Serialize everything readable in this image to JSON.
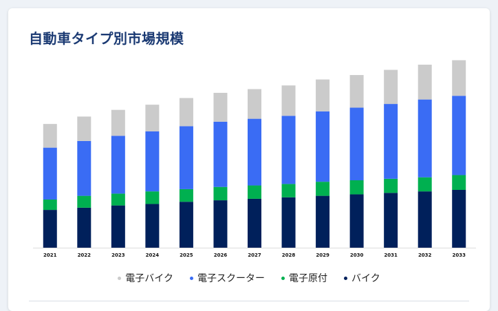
{
  "card": {
    "title": "自動車タイプ別市場規模"
  },
  "colors": {
    "title": "#1b3a73",
    "card_bg": "#ffffff",
    "page_bg": "#eef2f7"
  },
  "chart_data": {
    "type": "bar",
    "stacked": true,
    "categories": [
      "2021",
      "2022",
      "2023",
      "2024",
      "2025",
      "2026",
      "2027",
      "2028",
      "2029",
      "2030",
      "2031",
      "2032",
      "2033"
    ],
    "series": [
      {
        "name": "バイク",
        "color": "#00205b",
        "values": [
          5.1,
          5.4,
          5.7,
          5.9,
          6.2,
          6.4,
          6.6,
          6.8,
          7.0,
          7.2,
          7.4,
          7.6,
          7.8
        ]
      },
      {
        "name": "電子原付",
        "color": "#00b050",
        "values": [
          1.4,
          1.6,
          1.6,
          1.7,
          1.7,
          1.8,
          1.8,
          1.8,
          1.9,
          1.9,
          1.9,
          1.9,
          2.0
        ]
      },
      {
        "name": "電子スクーター",
        "color": "#3a6cf4",
        "values": [
          7.0,
          7.4,
          7.8,
          8.1,
          8.5,
          8.8,
          9.0,
          9.2,
          9.5,
          9.8,
          10.1,
          10.5,
          10.7
        ]
      },
      {
        "name": "電子バイク",
        "color": "#cbcbcb",
        "values": [
          3.2,
          3.3,
          3.5,
          3.6,
          3.8,
          3.9,
          4.0,
          4.1,
          4.3,
          4.4,
          4.6,
          4.7,
          4.8
        ]
      }
    ],
    "legend_order": [
      "電子バイク",
      "電子スクーター",
      "電子原付",
      "バイク"
    ],
    "ylim": [
      0,
      26
    ],
    "grid": false,
    "legend_position": "bottom"
  }
}
